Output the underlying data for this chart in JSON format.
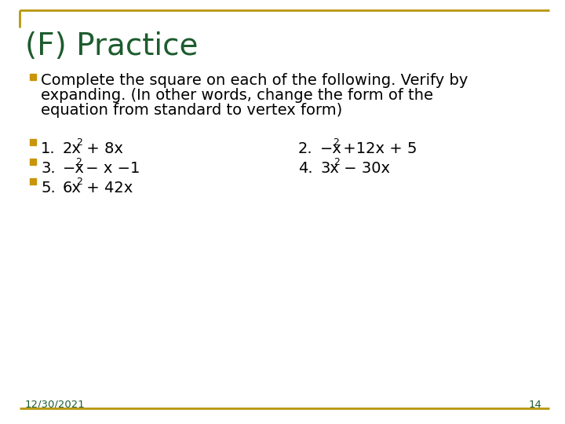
{
  "title": "(F) Practice",
  "title_color": "#1E5C2E",
  "background_color": "#FFFFFF",
  "border_color": "#B8960C",
  "bullet_color": "#C8960C",
  "text_color": "#000000",
  "footer_color": "#1E5C2E",
  "footer_date": "12/30/2021",
  "footer_page": "14",
  "line1": "Complete the square on each of the following. Verify by",
  "line2": "expanding. (In other words, change the form of the",
  "line3": "equation from standard to vertex form)",
  "left_items": [
    {
      "num": "1.",
      "base": "2x",
      "sup": "2",
      "rest": " + 8x"
    },
    {
      "num": "3.",
      "base": "−x",
      "sup": "2",
      "rest": " − x −1"
    },
    {
      "num": "5.",
      "base": "6x",
      "sup": "2",
      "rest": " + 42x"
    }
  ],
  "right_items": [
    {
      "num": "2.",
      "base": "−x",
      "sup": "2",
      "rest": " +12x + 5"
    },
    {
      "num": "4.",
      "base": "3x",
      "sup": "2",
      "rest": " − 30x"
    }
  ]
}
